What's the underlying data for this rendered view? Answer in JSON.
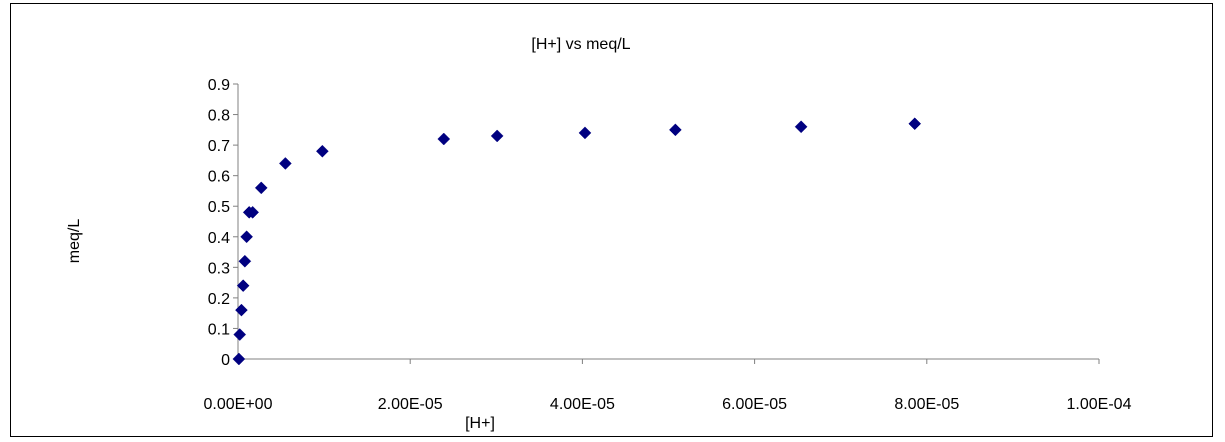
{
  "chart_data": {
    "type": "scatter",
    "title": "[H+] vs meq/L",
    "xlabel": "[H+]",
    "ylabel": "meq/L",
    "xlim": [
      0,
      0.0001
    ],
    "ylim": [
      0,
      0.9
    ],
    "x_ticks": [
      0,
      2e-05,
      4e-05,
      6e-05,
      8e-05,
      0.0001
    ],
    "x_tick_labels": [
      "0.00E+00",
      "2.00E-05",
      "4.00E-05",
      "6.00E-05",
      "8.00E-05",
      "1.00E-04"
    ],
    "y_ticks": [
      0,
      0.1,
      0.2,
      0.3,
      0.4,
      0.5,
      0.6,
      0.7,
      0.8,
      0.9
    ],
    "y_tick_labels": [
      "0",
      "0.1",
      "0.2",
      "0.3",
      "0.4",
      "0.5",
      "0.6",
      "0.7",
      "0.8",
      "0.9"
    ],
    "grid": false,
    "legend": "none",
    "marker_color": "#000080",
    "series": [
      {
        "x": [
          1e-07,
          2e-07,
          4e-07,
          6e-07,
          8e-07,
          1e-06,
          1.3e-06,
          1.7e-06,
          2.7e-06,
          5.5e-06,
          9.8e-06,
          2.39e-05,
          3.01e-05,
          4.03e-05,
          5.08e-05,
          6.54e-05,
          7.86e-05
        ],
        "y": [
          0.0,
          0.08,
          0.16,
          0.24,
          0.32,
          0.4,
          0.48,
          0.48,
          0.56,
          0.64,
          0.68,
          0.72,
          0.73,
          0.74,
          0.75,
          0.76,
          0.77
        ]
      }
    ]
  }
}
